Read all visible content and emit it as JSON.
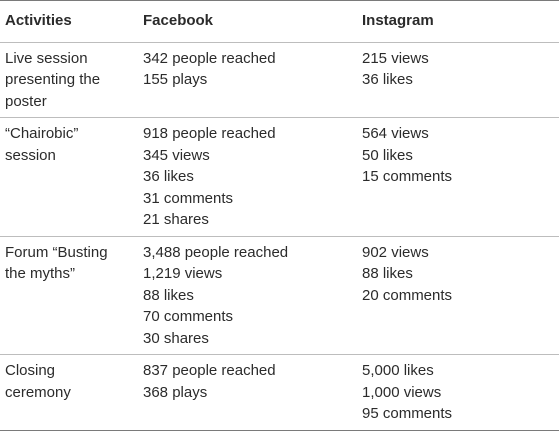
{
  "table": {
    "headers": [
      "Activities",
      "Facebook",
      "Instagram"
    ],
    "rows": [
      {
        "activity": [
          "Live session",
          "presenting the",
          "poster"
        ],
        "facebook": [
          "342 people reached",
          "155 plays"
        ],
        "instagram": [
          "215 views",
          "36 likes"
        ]
      },
      {
        "activity": [
          "“Chairobic”",
          "session"
        ],
        "facebook": [
          "918 people reached",
          "345 views",
          "36 likes",
          "31 comments",
          "21 shares"
        ],
        "instagram": [
          "564 views",
          "50 likes",
          "15 comments"
        ]
      },
      {
        "activity": [
          "Forum “Busting",
          "the myths”"
        ],
        "facebook": [
          "3,488 people reached",
          "1,219 views",
          "88 likes",
          "70 comments",
          "30 shares"
        ],
        "instagram": [
          "902 views",
          "88 likes",
          "20 comments"
        ]
      },
      {
        "activity": [
          "Closing",
          "ceremony"
        ],
        "facebook": [
          "837 people reached",
          "368 plays"
        ],
        "instagram": [
          "5,000 likes",
          "1,000 views",
          "95 comments"
        ]
      }
    ]
  }
}
